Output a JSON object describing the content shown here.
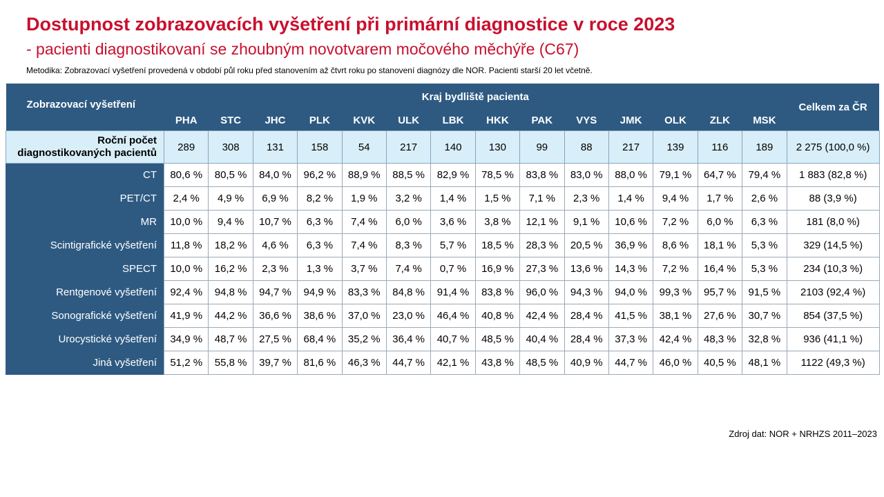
{
  "title": "Dostupnost zobrazovacích vyšetření při primární diagnostice v roce 2023",
  "subtitle": "- pacienti diagnostikovaní se zhoubným novotvarem močového měchýře (C67)",
  "methodology": "Metodika: Zobrazovací vyšetření provedená v období půl roku před stanovením až čtvrt roku po stanovení diagnózy dle NOR. Pacienti starší 20 let včetně.",
  "table": {
    "first_header": "Zobrazovací vyšetření",
    "group_header": "Kraj bydliště pacienta",
    "total_header": "Celkem za ČR",
    "regions": [
      "PHA",
      "STC",
      "JHC",
      "PLK",
      "KVK",
      "ULK",
      "LBK",
      "HKK",
      "PAK",
      "VYS",
      "JMK",
      "OLK",
      "ZLK",
      "MSK"
    ],
    "count_row": {
      "label": "Roční počet diagnostikovaných pacientů",
      "values": [
        "289",
        "308",
        "131",
        "158",
        "54",
        "217",
        "140",
        "130",
        "99",
        "88",
        "217",
        "139",
        "116",
        "189"
      ],
      "total": "2 275 (100,0 %)"
    },
    "rows": [
      {
        "label": "CT",
        "values": [
          "80,6 %",
          "80,5 %",
          "84,0 %",
          "96,2 %",
          "88,9 %",
          "88,5 %",
          "82,9 %",
          "78,5 %",
          "83,8 %",
          "83,0 %",
          "88,0 %",
          "79,1 %",
          "64,7 %",
          "79,4 %"
        ],
        "total": "1 883 (82,8 %)"
      },
      {
        "label": "PET/CT",
        "values": [
          "2,4 %",
          "4,9 %",
          "6,9 %",
          "8,2 %",
          "1,9 %",
          "3,2 %",
          "1,4 %",
          "1,5 %",
          "7,1 %",
          "2,3 %",
          "1,4 %",
          "9,4 %",
          "1,7 %",
          "2,6 %"
        ],
        "total": "88 (3,9 %)"
      },
      {
        "label": "MR",
        "values": [
          "10,0 %",
          "9,4 %",
          "10,7 %",
          "6,3 %",
          "7,4 %",
          "6,0 %",
          "3,6 %",
          "3,8 %",
          "12,1 %",
          "9,1 %",
          "10,6 %",
          "7,2 %",
          "6,0 %",
          "6,3 %"
        ],
        "total": "181 (8,0 %)"
      },
      {
        "label": "Scintigrafické vyšetření",
        "values": [
          "11,8 %",
          "18,2 %",
          "4,6 %",
          "6,3 %",
          "7,4 %",
          "8,3 %",
          "5,7 %",
          "18,5 %",
          "28,3 %",
          "20,5 %",
          "36,9 %",
          "8,6 %",
          "18,1 %",
          "5,3 %"
        ],
        "total": "329 (14,5 %)"
      },
      {
        "label": "SPECT",
        "values": [
          "10,0 %",
          "16,2 %",
          "2,3 %",
          "1,3 %",
          "3,7 %",
          "7,4 %",
          "0,7 %",
          "16,9 %",
          "27,3 %",
          "13,6 %",
          "14,3 %",
          "7,2 %",
          "16,4 %",
          "5,3 %"
        ],
        "total": "234 (10,3 %)"
      },
      {
        "label": "Rentgenové vyšetření",
        "values": [
          "92,4 %",
          "94,8 %",
          "94,7 %",
          "94,9 %",
          "83,3 %",
          "84,8 %",
          "91,4 %",
          "83,8 %",
          "96,0 %",
          "94,3 %",
          "94,0 %",
          "99,3 %",
          "95,7 %",
          "91,5 %"
        ],
        "total": "2103 (92,4 %)"
      },
      {
        "label": "Sonografické vyšetření",
        "values": [
          "41,9 %",
          "44,2 %",
          "36,6 %",
          "38,6 %",
          "37,0 %",
          "23,0 %",
          "46,4 %",
          "40,8 %",
          "42,4 %",
          "28,4 %",
          "41,5 %",
          "38,1 %",
          "27,6 %",
          "30,7 %"
        ],
        "total": "854 (37,5 %)"
      },
      {
        "label": "Urocystické vyšetření",
        "values": [
          "34,9 %",
          "48,7 %",
          "27,5 %",
          "68,4 %",
          "35,2 %",
          "36,4 %",
          "40,7 %",
          "48,5 %",
          "40,4 %",
          "28,4 %",
          "37,3 %",
          "42,4 %",
          "48,3 %",
          "32,8 %"
        ],
        "total": "936 (41,1 %)"
      },
      {
        "label": "Jiná vyšetření",
        "values": [
          "51,2 %",
          "55,8 %",
          "39,7 %",
          "81,6 %",
          "46,3 %",
          "44,7 %",
          "42,1 %",
          "43,8 %",
          "48,5 %",
          "40,9 %",
          "44,7 %",
          "46,0 %",
          "40,5 %",
          "48,1 %"
        ],
        "total": "1122 (49,3 %)"
      }
    ]
  },
  "source": "Zdroj dat: NOR + NRHZS 2011–2023",
  "colors": {
    "title": "#c8102e",
    "header_bg": "#2e5a82",
    "count_row_bg": "#d8eef8"
  }
}
